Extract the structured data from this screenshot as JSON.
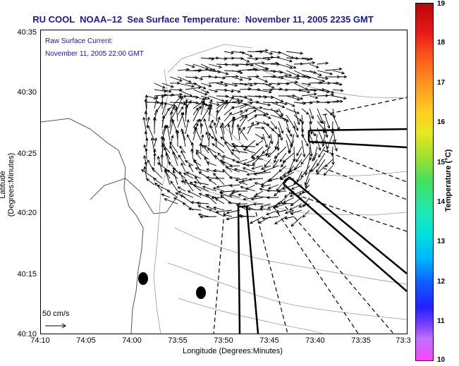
{
  "title": "RU COOL  NOAA–12  Sea Surface Temperature:  November 11, 2005 2235 GMT",
  "legend": {
    "current_label": "Raw Surface Current:",
    "current_time": "November 11, 2005 22:00 GMT",
    "scale_label": "50 cm/s"
  },
  "axes": {
    "xlabel": "Longitude (Degrees:Minutes)",
    "ylabel": "Latitude (Degrees:Minutes)",
    "xticks": [
      "74:10",
      "74:05",
      "74:00",
      "73:55",
      "73:50",
      "73:45",
      "73:40",
      "73:35",
      "73:3"
    ],
    "yticks": [
      "40:35",
      "40:30",
      "40:25",
      "40:20",
      "40:15",
      "40:10"
    ]
  },
  "colorbar": {
    "label": "Temperature (°C)",
    "ticks": [
      "19",
      "18",
      "17",
      "16",
      "15",
      "14",
      "13",
      "12",
      "11",
      "10"
    ]
  }
}
